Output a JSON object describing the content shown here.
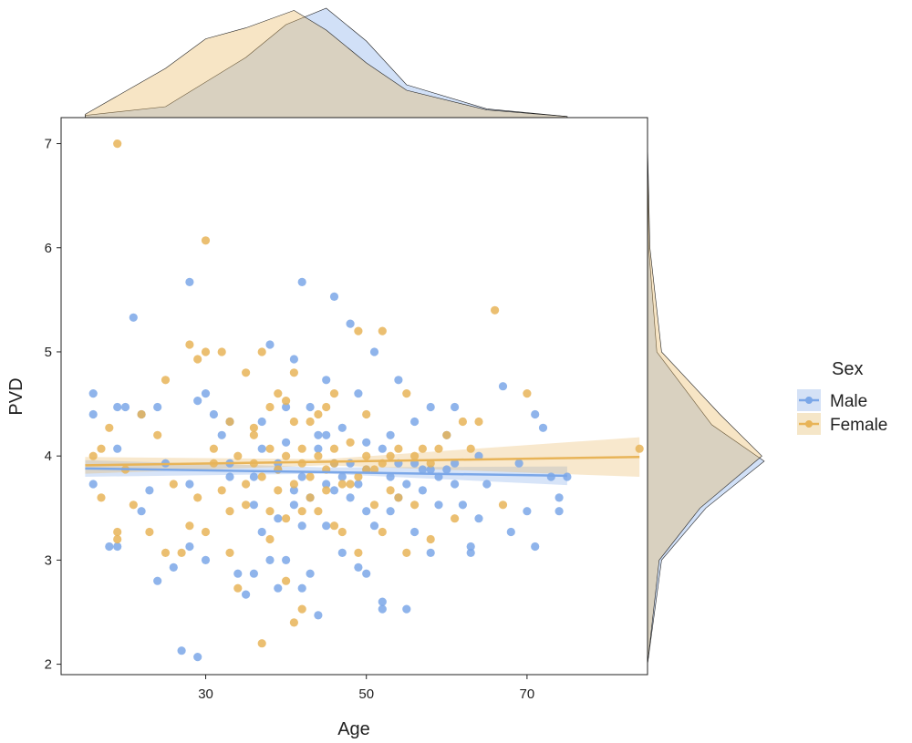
{
  "chart_data": {
    "type": "scatter",
    "xlabel": "Age",
    "ylabel": "PVD",
    "xlim": [
      12,
      85
    ],
    "ylim": [
      1.9,
      7.25
    ],
    "x_ticks": [
      30,
      50,
      70
    ],
    "y_ticks": [
      2,
      3,
      4,
      5,
      6,
      7
    ],
    "grid": false,
    "legend": {
      "title": "Sex",
      "placement": "right",
      "entries": [
        "Male",
        "Female"
      ]
    },
    "colors": {
      "Male": "#7BA7E8",
      "Female": "#E8B458",
      "overlap": "#E0D5BF"
    },
    "series": [
      {
        "name": "Male",
        "points": [
          [
            16,
            4.6
          ],
          [
            16,
            4.4
          ],
          [
            16,
            3.73
          ],
          [
            19,
            4.47
          ],
          [
            19,
            4.07
          ],
          [
            19,
            3.13
          ],
          [
            18,
            3.13
          ],
          [
            21,
            5.33
          ],
          [
            20,
            4.47
          ],
          [
            22,
            4.4
          ],
          [
            22,
            3.47
          ],
          [
            23,
            3.67
          ],
          [
            24,
            2.8
          ],
          [
            24,
            4.47
          ],
          [
            25,
            3.93
          ],
          [
            26,
            2.93
          ],
          [
            27,
            2.13
          ],
          [
            28,
            5.67
          ],
          [
            28,
            3.13
          ],
          [
            29,
            2.07
          ],
          [
            29,
            4.53
          ],
          [
            30,
            4.6
          ],
          [
            30,
            3.0
          ],
          [
            31,
            4.4
          ],
          [
            32,
            4.2
          ],
          [
            33,
            3.93
          ],
          [
            33,
            4.33
          ],
          [
            34,
            2.87
          ],
          [
            35,
            2.67
          ],
          [
            36,
            3.53
          ],
          [
            36,
            2.87
          ],
          [
            37,
            4.33
          ],
          [
            37,
            3.27
          ],
          [
            38,
            5.07
          ],
          [
            38,
            3.0
          ],
          [
            39,
            3.93
          ],
          [
            39,
            2.73
          ],
          [
            40,
            4.47
          ],
          [
            40,
            3.0
          ],
          [
            41,
            4.93
          ],
          [
            41,
            3.53
          ],
          [
            42,
            5.67
          ],
          [
            42,
            2.73
          ],
          [
            43,
            4.47
          ],
          [
            43,
            2.87
          ],
          [
            44,
            2.47
          ],
          [
            44,
            4.2
          ],
          [
            45,
            4.73
          ],
          [
            45,
            3.33
          ],
          [
            46,
            5.53
          ],
          [
            46,
            3.93
          ],
          [
            47,
            3.07
          ],
          [
            48,
            5.27
          ],
          [
            48,
            3.93
          ],
          [
            49,
            4.6
          ],
          [
            49,
            2.93
          ],
          [
            50,
            2.87
          ],
          [
            51,
            5.0
          ],
          [
            51,
            3.33
          ],
          [
            52,
            2.6
          ],
          [
            52,
            2.53
          ],
          [
            53,
            4.2
          ],
          [
            53,
            3.47
          ],
          [
            54,
            4.73
          ],
          [
            54,
            3.93
          ],
          [
            55,
            2.53
          ],
          [
            56,
            3.27
          ],
          [
            56,
            4.33
          ],
          [
            57,
            3.67
          ],
          [
            58,
            4.47
          ],
          [
            58,
            3.07
          ],
          [
            59,
            3.53
          ],
          [
            60,
            4.2
          ],
          [
            60,
            3.87
          ],
          [
            61,
            4.47
          ],
          [
            61,
            3.73
          ],
          [
            62,
            3.53
          ],
          [
            63,
            3.07
          ],
          [
            63,
            3.13
          ],
          [
            64,
            3.4
          ],
          [
            64,
            4.0
          ],
          [
            65,
            3.73
          ],
          [
            67,
            4.67
          ],
          [
            68,
            3.27
          ],
          [
            69,
            3.93
          ],
          [
            70,
            3.47
          ],
          [
            71,
            4.4
          ],
          [
            71,
            3.13
          ],
          [
            72,
            4.27
          ],
          [
            73,
            3.8
          ],
          [
            74,
            3.47
          ],
          [
            74,
            3.6
          ],
          [
            75,
            3.8
          ],
          [
            28,
            3.73
          ],
          [
            33,
            3.8
          ],
          [
            36,
            3.8
          ],
          [
            39,
            3.87
          ],
          [
            42,
            3.8
          ],
          [
            45,
            3.73
          ],
          [
            47,
            3.8
          ],
          [
            50,
            3.87
          ],
          [
            53,
            3.8
          ],
          [
            55,
            3.73
          ],
          [
            57,
            3.87
          ],
          [
            59,
            3.8
          ],
          [
            61,
            3.93
          ],
          [
            37,
            4.07
          ],
          [
            40,
            4.13
          ],
          [
            44,
            4.07
          ],
          [
            46,
            3.67
          ],
          [
            48,
            3.6
          ],
          [
            50,
            4.13
          ],
          [
            52,
            4.07
          ],
          [
            54,
            3.6
          ],
          [
            43,
            3.6
          ],
          [
            41,
            3.67
          ],
          [
            49,
            3.73
          ],
          [
            45,
            4.2
          ],
          [
            47,
            4.27
          ],
          [
            39,
            3.4
          ],
          [
            42,
            3.33
          ],
          [
            50,
            3.47
          ],
          [
            56,
            3.93
          ],
          [
            58,
            3.87
          ]
        ]
      },
      {
        "name": "Female",
        "points": [
          [
            16,
            4.0
          ],
          [
            17,
            4.07
          ],
          [
            17,
            3.6
          ],
          [
            18,
            4.27
          ],
          [
            19,
            7.0
          ],
          [
            19,
            3.27
          ],
          [
            19,
            3.2
          ],
          [
            20,
            3.87
          ],
          [
            21,
            3.53
          ],
          [
            22,
            4.4
          ],
          [
            23,
            3.27
          ],
          [
            24,
            4.2
          ],
          [
            25,
            4.73
          ],
          [
            25,
            3.07
          ],
          [
            26,
            3.73
          ],
          [
            27,
            3.07
          ],
          [
            28,
            5.07
          ],
          [
            28,
            3.33
          ],
          [
            29,
            4.93
          ],
          [
            29,
            3.6
          ],
          [
            30,
            6.07
          ],
          [
            30,
            5.0
          ],
          [
            30,
            3.27
          ],
          [
            31,
            4.07
          ],
          [
            32,
            5.0
          ],
          [
            32,
            3.67
          ],
          [
            33,
            4.33
          ],
          [
            33,
            3.07
          ],
          [
            34,
            2.73
          ],
          [
            35,
            4.8
          ],
          [
            35,
            3.53
          ],
          [
            36,
            3.93
          ],
          [
            37,
            5.0
          ],
          [
            37,
            2.2
          ],
          [
            38,
            4.47
          ],
          [
            38,
            3.2
          ],
          [
            39,
            4.6
          ],
          [
            39,
            3.87
          ],
          [
            40,
            4.53
          ],
          [
            40,
            2.8
          ],
          [
            41,
            4.8
          ],
          [
            41,
            2.4
          ],
          [
            42,
            4.07
          ],
          [
            42,
            2.53
          ],
          [
            43,
            4.33
          ],
          [
            43,
            3.6
          ],
          [
            44,
            3.47
          ],
          [
            45,
            4.47
          ],
          [
            45,
            3.87
          ],
          [
            46,
            4.07
          ],
          [
            46,
            3.33
          ],
          [
            47,
            3.27
          ],
          [
            48,
            3.73
          ],
          [
            49,
            5.2
          ],
          [
            49,
            3.07
          ],
          [
            50,
            3.87
          ],
          [
            50,
            4.4
          ],
          [
            51,
            3.53
          ],
          [
            52,
            5.2
          ],
          [
            52,
            3.27
          ],
          [
            53,
            4.0
          ],
          [
            54,
            3.6
          ],
          [
            55,
            4.6
          ],
          [
            55,
            3.07
          ],
          [
            56,
            3.53
          ],
          [
            57,
            4.07
          ],
          [
            58,
            3.2
          ],
          [
            59,
            4.07
          ],
          [
            60,
            4.2
          ],
          [
            61,
            3.4
          ],
          [
            62,
            4.33
          ],
          [
            63,
            4.07
          ],
          [
            64,
            4.33
          ],
          [
            66,
            5.4
          ],
          [
            67,
            3.53
          ],
          [
            70,
            4.6
          ],
          [
            84,
            4.07
          ],
          [
            31,
            3.93
          ],
          [
            34,
            4.0
          ],
          [
            36,
            4.2
          ],
          [
            38,
            4.07
          ],
          [
            40,
            4.0
          ],
          [
            42,
            3.93
          ],
          [
            44,
            4.0
          ],
          [
            46,
            3.93
          ],
          [
            48,
            4.13
          ],
          [
            50,
            4.0
          ],
          [
            52,
            3.93
          ],
          [
            54,
            4.07
          ],
          [
            56,
            4.0
          ],
          [
            58,
            3.93
          ],
          [
            35,
            3.73
          ],
          [
            37,
            3.8
          ],
          [
            39,
            3.67
          ],
          [
            41,
            3.73
          ],
          [
            43,
            3.8
          ],
          [
            45,
            3.67
          ],
          [
            47,
            3.73
          ],
          [
            49,
            3.8
          ],
          [
            51,
            3.87
          ],
          [
            53,
            3.67
          ],
          [
            36,
            4.27
          ],
          [
            41,
            4.33
          ],
          [
            44,
            4.4
          ],
          [
            46,
            4.6
          ],
          [
            33,
            3.47
          ],
          [
            38,
            3.47
          ],
          [
            40,
            3.4
          ],
          [
            42,
            3.47
          ]
        ]
      }
    ],
    "regression": [
      {
        "name": "Male",
        "x": [
          15,
          75
        ],
        "y": [
          3.88,
          3.81
        ],
        "ci": [
          [
            15,
            3.8,
            3.96
          ],
          [
            45,
            3.83,
            3.89
          ],
          [
            75,
            3.72,
            3.9
          ]
        ]
      },
      {
        "name": "Female",
        "x": [
          15,
          84
        ],
        "y": [
          3.91,
          3.99
        ],
        "ci": [
          [
            15,
            3.83,
            3.99
          ],
          [
            45,
            3.91,
            3.97
          ],
          [
            84,
            3.8,
            4.18
          ]
        ]
      }
    ],
    "marginal_x": {
      "type": "density",
      "Male": [
        [
          15,
          0.02
        ],
        [
          25,
          0.1
        ],
        [
          35,
          0.55
        ],
        [
          40,
          0.85
        ],
        [
          45,
          1.0
        ],
        [
          50,
          0.7
        ],
        [
          55,
          0.3
        ],
        [
          65,
          0.08
        ],
        [
          75,
          0.01
        ]
      ],
      "Female": [
        [
          15,
          0.03
        ],
        [
          25,
          0.45
        ],
        [
          30,
          0.72
        ],
        [
          35,
          0.82
        ],
        [
          41,
          0.98
        ],
        [
          45,
          0.8
        ],
        [
          50,
          0.5
        ],
        [
          55,
          0.25
        ],
        [
          65,
          0.07
        ],
        [
          75,
          0.01
        ]
      ]
    },
    "marginal_y": {
      "type": "density",
      "Male": [
        [
          2.0,
          0.0
        ],
        [
          3.0,
          0.12
        ],
        [
          3.5,
          0.5
        ],
        [
          3.95,
          1.0
        ],
        [
          4.3,
          0.55
        ],
        [
          5.0,
          0.08
        ],
        [
          6.0,
          0.01
        ],
        [
          7.0,
          0.0
        ]
      ],
      "Female": [
        [
          2.0,
          0.0
        ],
        [
          3.0,
          0.1
        ],
        [
          3.5,
          0.45
        ],
        [
          4.0,
          0.98
        ],
        [
          4.4,
          0.62
        ],
        [
          5.0,
          0.12
        ],
        [
          6.0,
          0.02
        ],
        [
          7.0,
          0.0
        ]
      ]
    }
  }
}
